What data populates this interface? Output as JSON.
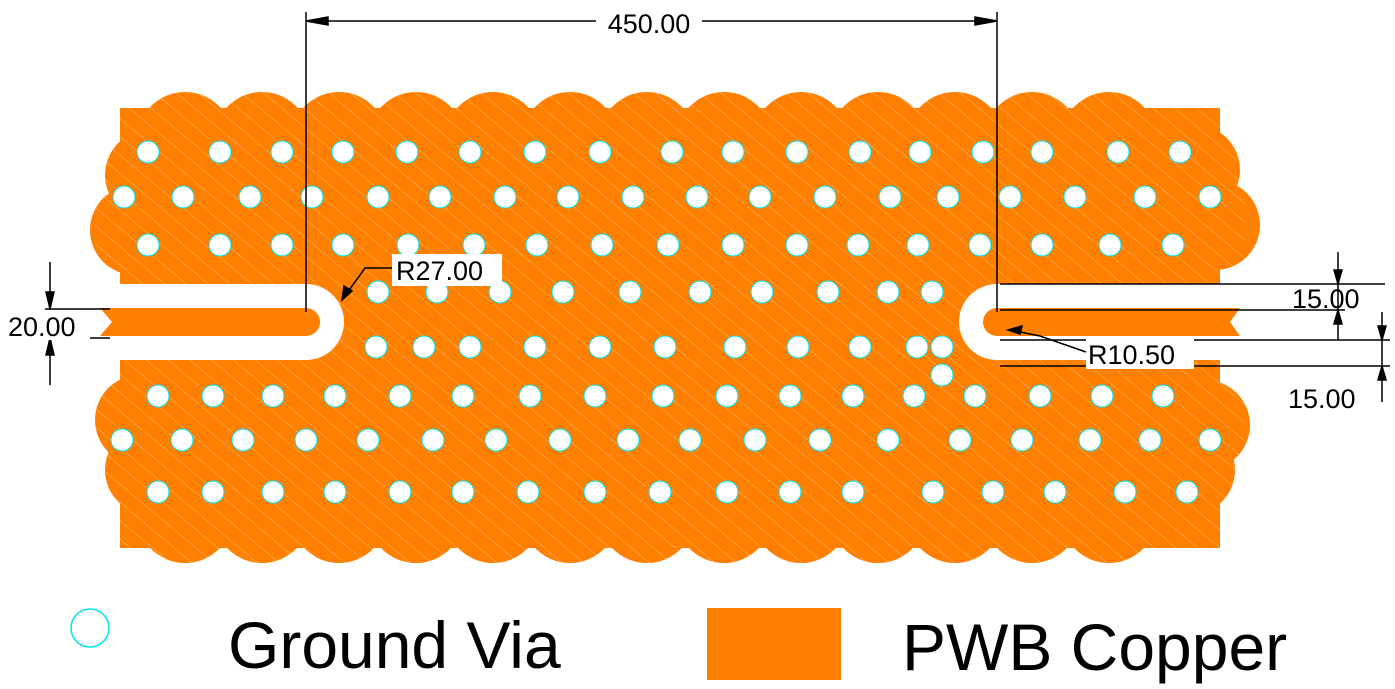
{
  "dimensions": {
    "width_label": "450.00",
    "large_radius_label": "R27.00",
    "small_radius_label": "R10.50",
    "slot_width_label": "20.00",
    "right_gap_top_label": "15.00",
    "right_gap_bottom_label": "15.00"
  },
  "legend": {
    "via_label": "Ground Via",
    "copper_label": "PWB Copper"
  },
  "colors": {
    "copper": "#ff8000",
    "via_fill": "#ffffff",
    "via_outline": "#00e5ee",
    "dimension_line": "#000000"
  },
  "icons": {
    "via_symbol": "circle-outline-icon",
    "copper_symbol": "filled-rectangle-icon"
  }
}
